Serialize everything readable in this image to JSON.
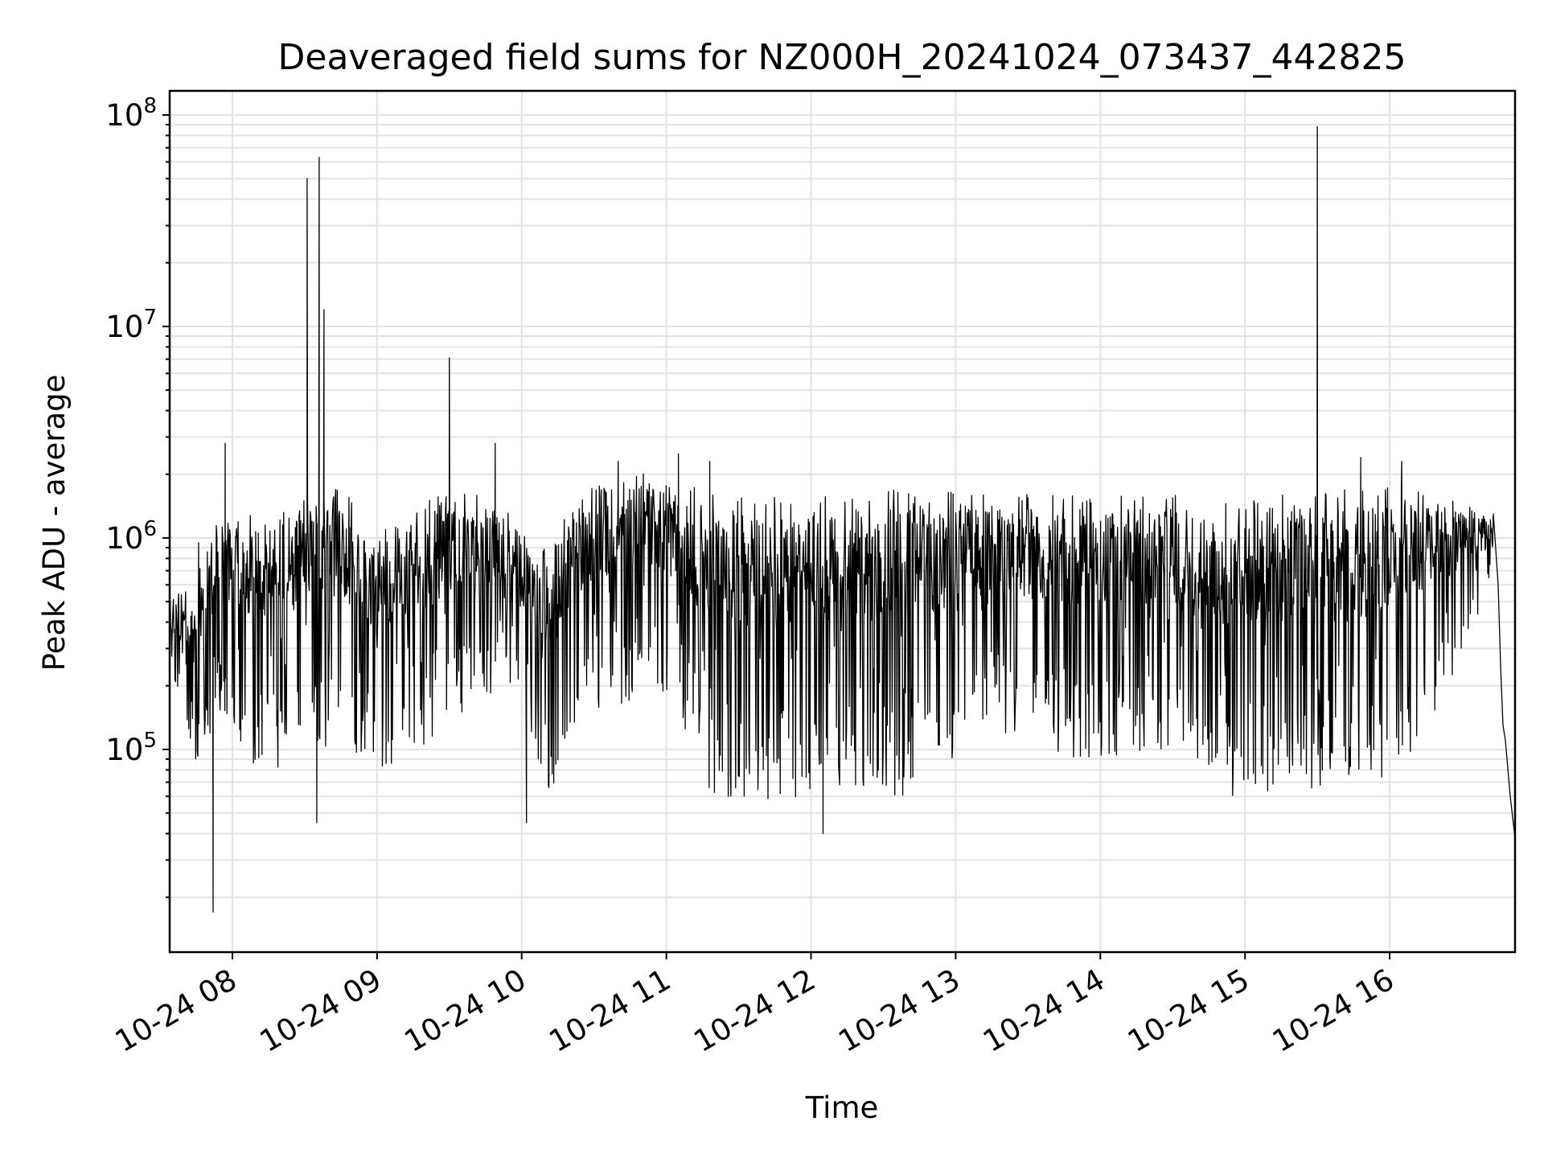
{
  "chart_data": {
    "type": "line",
    "title": "Deaveraged field sums for NZ000H_20241024_073437_442825",
    "xlabel": "Time",
    "ylabel": "Peak ADU - average",
    "yscale": "log",
    "ylim": [
      11000,
      130000000
    ],
    "xlim": [
      "2024-10-24 07:34",
      "2024-10-24 16:52"
    ],
    "grid": true,
    "line_color": "#000000",
    "x_ticks": [
      {
        "time": "2024-10-24 08:00",
        "label": "10-24 08"
      },
      {
        "time": "2024-10-24 09:00",
        "label": "10-24 09"
      },
      {
        "time": "2024-10-24 10:00",
        "label": "10-24 10"
      },
      {
        "time": "2024-10-24 11:00",
        "label": "10-24 11"
      },
      {
        "time": "2024-10-24 12:00",
        "label": "10-24 12"
      },
      {
        "time": "2024-10-24 13:00",
        "label": "10-24 13"
      },
      {
        "time": "2024-10-24 14:00",
        "label": "10-24 14"
      },
      {
        "time": "2024-10-24 15:00",
        "label": "10-24 15"
      },
      {
        "time": "2024-10-24 16:00",
        "label": "10-24 16"
      }
    ],
    "y_ticks": [
      {
        "value": 100000,
        "base": "10",
        "exp": "5"
      },
      {
        "value": 1000000,
        "base": "10",
        "exp": "6"
      },
      {
        "value": 10000000,
        "base": "10",
        "exp": "7"
      },
      {
        "value": 100000000,
        "base": "10",
        "exp": "8"
      }
    ],
    "series": [
      {
        "x_start": "2024-10-24 07:34",
        "x_end": "2024-10-24 16:52",
        "envelope": [
          {
            "t": "2024-10-24 07:34",
            "hi": 500000,
            "lo": 250000
          },
          {
            "t": "2024-10-24 07:45",
            "hi": 650000,
            "lo": 80000
          },
          {
            "t": "2024-10-24 07:54",
            "hi": 1500000,
            "lo": 150000
          },
          {
            "t": "2024-10-24 08:10",
            "hi": 1300000,
            "lo": 80000
          },
          {
            "t": "2024-10-24 08:30",
            "hi": 1600000,
            "lo": 80000
          },
          {
            "t": "2024-10-24 08:45",
            "hi": 1800000,
            "lo": 110000
          },
          {
            "t": "2024-10-24 09:00",
            "hi": 1100000,
            "lo": 80000
          },
          {
            "t": "2024-10-24 09:20",
            "hi": 1500000,
            "lo": 90000
          },
          {
            "t": "2024-10-24 09:35",
            "hi": 1700000,
            "lo": 150000
          },
          {
            "t": "2024-10-24 09:55",
            "hi": 1400000,
            "lo": 180000
          },
          {
            "t": "2024-10-24 10:10",
            "hi": 900000,
            "lo": 60000
          },
          {
            "t": "2024-10-24 10:30",
            "hi": 2000000,
            "lo": 120000
          },
          {
            "t": "2024-10-24 10:55",
            "hi": 2100000,
            "lo": 200000
          },
          {
            "t": "2024-10-24 11:20",
            "hi": 1600000,
            "lo": 55000
          },
          {
            "t": "2024-10-24 12:00",
            "hi": 1600000,
            "lo": 60000
          },
          {
            "t": "2024-10-24 12:40",
            "hi": 1700000,
            "lo": 60000
          },
          {
            "t": "2024-10-24 13:15",
            "hi": 1700000,
            "lo": 120000
          },
          {
            "t": "2024-10-24 13:50",
            "hi": 1600000,
            "lo": 90000
          },
          {
            "t": "2024-10-24 14:30",
            "hi": 1600000,
            "lo": 100000
          },
          {
            "t": "2024-10-24 14:55",
            "hi": 1500000,
            "lo": 60000
          },
          {
            "t": "2024-10-24 15:30",
            "hi": 1700000,
            "lo": 65000
          },
          {
            "t": "2024-10-24 16:00",
            "hi": 1800000,
            "lo": 70000
          },
          {
            "t": "2024-10-24 16:20",
            "hi": 1700000,
            "lo": 150000
          },
          {
            "t": "2024-10-24 16:40",
            "hi": 1300000,
            "lo": 500000
          }
        ],
        "spikes": [
          {
            "t": "2024-10-24 07:46",
            "y": 950000
          },
          {
            "t": "2024-10-24 07:52",
            "y": 17000
          },
          {
            "t": "2024-10-24 07:57",
            "y": 2800000
          },
          {
            "t": "2024-10-24 08:31",
            "y": 50000000
          },
          {
            "t": "2024-10-24 08:35",
            "y": 45000
          },
          {
            "t": "2024-10-24 08:36",
            "y": 63000000
          },
          {
            "t": "2024-10-24 08:38",
            "y": 12000000
          },
          {
            "t": "2024-10-24 09:30",
            "y": 7100000
          },
          {
            "t": "2024-10-24 09:49",
            "y": 2800000
          },
          {
            "t": "2024-10-24 10:02",
            "y": 45000
          },
          {
            "t": "2024-10-24 10:40",
            "y": 2300000
          },
          {
            "t": "2024-10-24 11:05",
            "y": 2500000
          },
          {
            "t": "2024-10-24 11:18",
            "y": 2300000
          },
          {
            "t": "2024-10-24 12:05",
            "y": 40000
          },
          {
            "t": "2024-10-24 15:30",
            "y": 88000000
          },
          {
            "t": "2024-10-24 15:48",
            "y": 2400000
          },
          {
            "t": "2024-10-24 16:05",
            "y": 2300000
          }
        ],
        "tail": [
          {
            "t": "2024-10-24 16:43",
            "y": 1300000
          },
          {
            "t": "2024-10-24 16:45",
            "y": 600000
          },
          {
            "t": "2024-10-24 16:46",
            "y": 250000
          },
          {
            "t": "2024-10-24 16:47",
            "y": 130000
          },
          {
            "t": "2024-10-24 16:48",
            "y": 110000
          },
          {
            "t": "2024-10-24 16:50",
            "y": 60000
          },
          {
            "t": "2024-10-24 16:52",
            "y": 38000
          }
        ]
      }
    ]
  }
}
